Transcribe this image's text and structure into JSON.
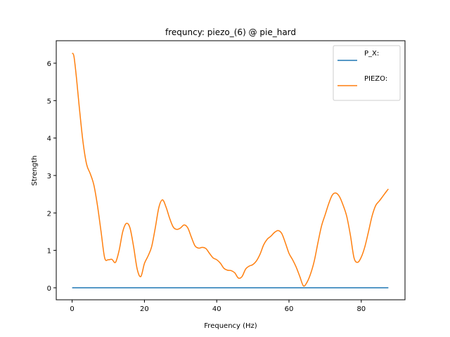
{
  "chart_data": {
    "type": "line",
    "title": "frequncy: piezo_(6) @ pie_hard",
    "xlabel": "Frequency (Hz)",
    "ylabel": "Strength",
    "xlim": [
      -4.4,
      92.1
    ],
    "ylim": [
      -0.32,
      6.6
    ],
    "xticks": [
      0,
      20,
      40,
      60,
      80
    ],
    "yticks": [
      0,
      1,
      2,
      3,
      4,
      5,
      6
    ],
    "grid": false,
    "legend_position": "top-right",
    "series": [
      {
        "name": "P_X:",
        "color": "#1f77b4",
        "x": [
          0,
          87.5
        ],
        "y": [
          0,
          0
        ]
      },
      {
        "name": "PIEZO:",
        "color": "#ff7f0e",
        "x": [
          0,
          0.5,
          1.2,
          2,
          3,
          4,
          5,
          6,
          7,
          8,
          9,
          10,
          11,
          12,
          13,
          14,
          15,
          16,
          17,
          18,
          19,
          20,
          21,
          22,
          23,
          24,
          25,
          26,
          27,
          28,
          29,
          30,
          31,
          32,
          33,
          34,
          35,
          36,
          37,
          38,
          39,
          40,
          41,
          42,
          43,
          44,
          45,
          46,
          47,
          48,
          49,
          50,
          51,
          52,
          53,
          54,
          55,
          56,
          57,
          58,
          59,
          60,
          61,
          62,
          63,
          64,
          65,
          66,
          67,
          68,
          69,
          70,
          71,
          72,
          73,
          74,
          75,
          76,
          77,
          78,
          79,
          80,
          81,
          82,
          83,
          84,
          85,
          86,
          87,
          87.5
        ],
        "y": [
          6.27,
          6.18,
          5.6,
          4.8,
          3.9,
          3.3,
          3.05,
          2.75,
          2.2,
          1.5,
          0.8,
          0.75,
          0.76,
          0.68,
          1.0,
          1.5,
          1.72,
          1.6,
          1.1,
          0.5,
          0.3,
          0.65,
          0.85,
          1.1,
          1.6,
          2.15,
          2.35,
          2.15,
          1.85,
          1.62,
          1.56,
          1.6,
          1.68,
          1.6,
          1.35,
          1.12,
          1.06,
          1.08,
          1.05,
          0.92,
          0.8,
          0.75,
          0.66,
          0.52,
          0.47,
          0.46,
          0.4,
          0.26,
          0.3,
          0.5,
          0.58,
          0.62,
          0.72,
          0.9,
          1.15,
          1.3,
          1.38,
          1.48,
          1.53,
          1.45,
          1.2,
          0.92,
          0.75,
          0.55,
          0.3,
          0.05,
          0.15,
          0.38,
          0.72,
          1.2,
          1.65,
          1.95,
          2.25,
          2.48,
          2.53,
          2.43,
          2.2,
          1.9,
          1.4,
          0.8,
          0.68,
          0.82,
          1.1,
          1.5,
          1.92,
          2.2,
          2.32,
          2.45,
          2.58,
          2.64
        ]
      }
    ]
  }
}
